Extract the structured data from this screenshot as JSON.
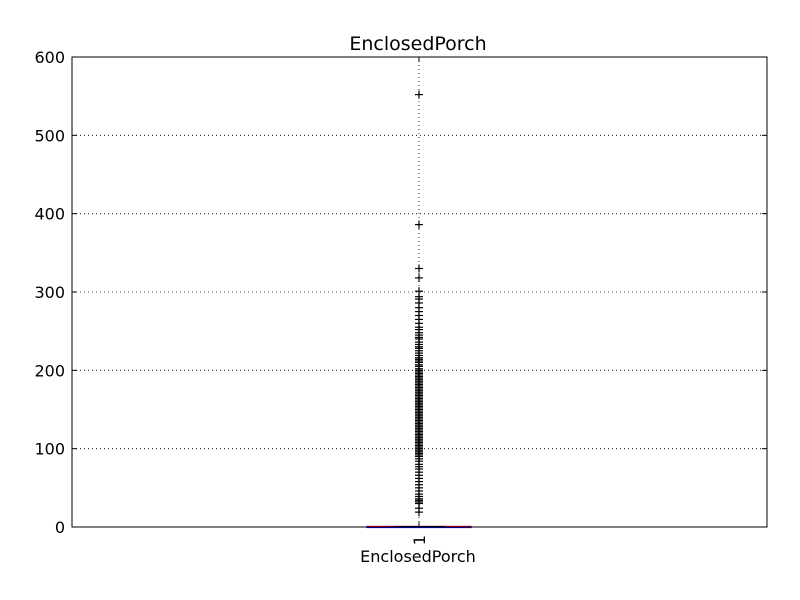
{
  "chart_data": {
    "type": "box",
    "title": "EnclosedPorch",
    "xlabel": "EnclosedPorch",
    "ylabel": "",
    "categories": [
      "1"
    ],
    "ylim": [
      0,
      600
    ],
    "yticks": [
      "0",
      "100",
      "200",
      "300",
      "400",
      "500",
      "600"
    ],
    "grid": true,
    "box": {
      "min": 0,
      "q1": 0,
      "median": 0,
      "q3": 0,
      "max": 0
    },
    "outliers": [
      552,
      386,
      330,
      318,
      301,
      294,
      291,
      286,
      280,
      275,
      270,
      265,
      260,
      255,
      252,
      248,
      245,
      242,
      240,
      236,
      233,
      230,
      228,
      225,
      222,
      219,
      216,
      214,
      212,
      210,
      207,
      205,
      202,
      200,
      198,
      196,
      194,
      192,
      190,
      188,
      186,
      184,
      182,
      180,
      178,
      176,
      174,
      172,
      170,
      168,
      166,
      164,
      162,
      160,
      158,
      156,
      154,
      152,
      150,
      148,
      146,
      144,
      142,
      140,
      138,
      136,
      134,
      132,
      130,
      128,
      126,
      124,
      122,
      120,
      118,
      116,
      114,
      112,
      110,
      108,
      106,
      104,
      102,
      100,
      98,
      96,
      94,
      92,
      90,
      87,
      84,
      80,
      77,
      74,
      70,
      66,
      62,
      58,
      54,
      50,
      46,
      42,
      39,
      36,
      34,
      32,
      30,
      24,
      19
    ],
    "colors": {
      "box": "#0000ff",
      "median": "#ff0000",
      "flier": "#000000"
    }
  }
}
